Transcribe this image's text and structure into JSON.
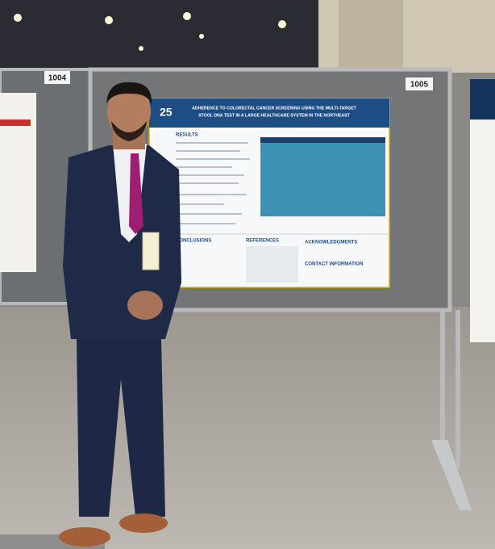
{
  "booths": [
    "1004",
    "1005"
  ],
  "poster": {
    "year": "25",
    "title_lines": [
      "ADHERENCE TO COLORECTAL CANCER SCREENING USING THE MULTI-TARGET",
      "STOOL DNA TEST IN A LARGE HEALTHCARE SYSTEM IN THE NORTHEAST"
    ],
    "sections": [
      "RESULTS",
      "CONCLUSIONS",
      "REFERENCES",
      "ACKNOWLEDGMENTS",
      "CONTACT INFORMATION"
    ]
  }
}
